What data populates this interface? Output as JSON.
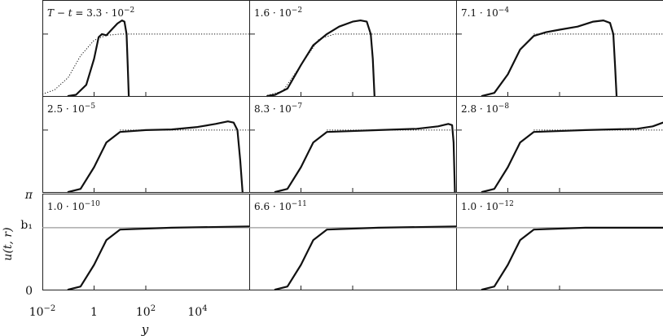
{
  "chart_data": {
    "type": "line",
    "layout": "3x3 panel grid",
    "xlabel": "y",
    "ylabel": "u(t, r)",
    "xscale": "log",
    "x_tick_labels": [
      {
        "base": "10",
        "exp": "−2"
      },
      {
        "base": "1",
        "exp": ""
      },
      {
        "base": "10",
        "exp": "2"
      },
      {
        "base": "10",
        "exp": "4"
      }
    ],
    "xlim": [
      0.01,
      1000000
    ],
    "y_tick_labels": [
      "0",
      "b₁",
      "π"
    ],
    "ylim": [
      0,
      1.55
    ],
    "b1": 1.0,
    "panels": [
      {
        "label_prefix": "T − t = ",
        "label": "3.3 · 10",
        "exp": "−2",
        "solid": [
          [
            0.1,
            0
          ],
          [
            0.2,
            0.02
          ],
          [
            0.5,
            0.18
          ],
          [
            1,
            0.6
          ],
          [
            1.5,
            0.95
          ],
          [
            2,
            1.0
          ],
          [
            3,
            0.98
          ],
          [
            5,
            1.08
          ],
          [
            8,
            1.17
          ],
          [
            12,
            1.22
          ],
          [
            15,
            1.2
          ],
          [
            18,
            1.0
          ],
          [
            20,
            0.5
          ],
          [
            22,
            0
          ]
        ],
        "dotted": [
          [
            0.01,
            0.03
          ],
          [
            0.03,
            0.1
          ],
          [
            0.1,
            0.3
          ],
          [
            0.3,
            0.65
          ],
          [
            1,
            0.9
          ],
          [
            3,
            0.98
          ],
          [
            10,
            1.0
          ],
          [
            1000000,
            1.0
          ]
        ]
      },
      {
        "label_prefix": "",
        "label": "1.6 · 10",
        "exp": "−2",
        "solid": [
          [
            0.05,
            0
          ],
          [
            0.1,
            0.02
          ],
          [
            0.3,
            0.12
          ],
          [
            1,
            0.5
          ],
          [
            3,
            0.82
          ],
          [
            10,
            1.0
          ],
          [
            30,
            1.12
          ],
          [
            100,
            1.2
          ],
          [
            200,
            1.22
          ],
          [
            350,
            1.2
          ],
          [
            500,
            1.0
          ],
          [
            600,
            0.6
          ],
          [
            700,
            0
          ]
        ],
        "dotted": [
          [
            0.05,
            0.01
          ],
          [
            0.2,
            0.08
          ],
          [
            1,
            0.5
          ],
          [
            5,
            0.92
          ],
          [
            20,
            1.0
          ],
          [
            1000000,
            1.0
          ]
        ]
      },
      {
        "label_prefix": "",
        "label": "7.1 · 10",
        "exp": "−4",
        "solid": [
          [
            0.1,
            0
          ],
          [
            0.3,
            0.05
          ],
          [
            1,
            0.35
          ],
          [
            3,
            0.75
          ],
          [
            10,
            0.97
          ],
          [
            30,
            1.03
          ],
          [
            100,
            1.07
          ],
          [
            500,
            1.12
          ],
          [
            2000,
            1.2
          ],
          [
            5000,
            1.22
          ],
          [
            9000,
            1.18
          ],
          [
            12000,
            1.0
          ],
          [
            14000,
            0.5
          ],
          [
            16000,
            0
          ]
        ],
        "dotted": [
          [
            10,
            1.0
          ],
          [
            1000000,
            1.0
          ]
        ]
      },
      {
        "label_prefix": "",
        "label": "2.5 · 10",
        "exp": "−5",
        "solid": [
          [
            0.1,
            0
          ],
          [
            0.3,
            0.05
          ],
          [
            1,
            0.4
          ],
          [
            3,
            0.8
          ],
          [
            10,
            0.97
          ],
          [
            100,
            1.0
          ],
          [
            1000,
            1.01
          ],
          [
            10000,
            1.05
          ],
          [
            50000,
            1.1
          ],
          [
            150000,
            1.14
          ],
          [
            250000,
            1.12
          ],
          [
            350000,
            1.0
          ],
          [
            450000,
            0.5
          ],
          [
            550000,
            0
          ]
        ],
        "dotted": [
          [
            10,
            1.0
          ],
          [
            1000000,
            1.0
          ]
        ]
      },
      {
        "label_prefix": "",
        "label": "8.3 · 10",
        "exp": "−7",
        "solid": [
          [
            0.1,
            0
          ],
          [
            0.3,
            0.05
          ],
          [
            1,
            0.4
          ],
          [
            3,
            0.8
          ],
          [
            10,
            0.97
          ],
          [
            1000,
            1.0
          ],
          [
            30000,
            1.02
          ],
          [
            200000,
            1.06
          ],
          [
            500000,
            1.1
          ],
          [
            700000,
            1.08
          ],
          [
            800000,
            0.8
          ],
          [
            900000,
            0
          ]
        ],
        "dotted": [
          [
            10,
            1.0
          ],
          [
            1000000,
            1.0
          ]
        ]
      },
      {
        "label_prefix": "",
        "label": "2.8 · 10",
        "exp": "−8",
        "solid": [
          [
            0.1,
            0
          ],
          [
            0.3,
            0.05
          ],
          [
            1,
            0.4
          ],
          [
            3,
            0.8
          ],
          [
            10,
            0.97
          ],
          [
            1000,
            1.0
          ],
          [
            100000,
            1.02
          ],
          [
            400000,
            1.06
          ],
          [
            1000000,
            1.12
          ]
        ],
        "dotted": [
          [
            10,
            1.0
          ],
          [
            1000000,
            1.0
          ]
        ]
      },
      {
        "label_prefix": "",
        "label": "1.0 · 10",
        "exp": "−10",
        "solid": [
          [
            0.1,
            0
          ],
          [
            0.3,
            0.05
          ],
          [
            1,
            0.4
          ],
          [
            3,
            0.8
          ],
          [
            10,
            0.97
          ],
          [
            1000,
            1.0
          ],
          [
            1000000,
            1.02
          ]
        ],
        "dotted": []
      },
      {
        "label_prefix": "",
        "label": "6.6 · 10",
        "exp": "−11",
        "solid": [
          [
            0.1,
            0
          ],
          [
            0.3,
            0.05
          ],
          [
            1,
            0.4
          ],
          [
            3,
            0.8
          ],
          [
            10,
            0.97
          ],
          [
            1000,
            1.0
          ],
          [
            1000000,
            1.02
          ]
        ],
        "dotted": []
      },
      {
        "label_prefix": "",
        "label": "1.0 · 10",
        "exp": "−12",
        "solid": [
          [
            0.1,
            0
          ],
          [
            0.3,
            0.05
          ],
          [
            1,
            0.4
          ],
          [
            3,
            0.8
          ],
          [
            10,
            0.97
          ],
          [
            1000,
            1.0
          ],
          [
            1000000,
            1.0
          ]
        ],
        "dotted": []
      }
    ]
  }
}
